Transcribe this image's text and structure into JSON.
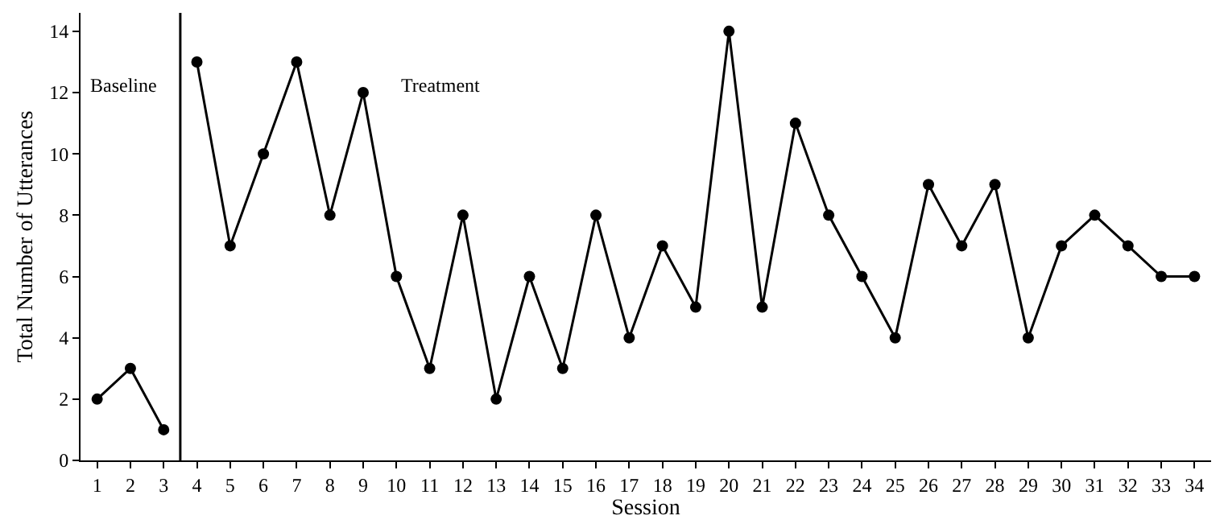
{
  "chart_data": {
    "type": "line",
    "xlabel": "Session",
    "ylabel": "Total Number of Utterances",
    "series": [
      {
        "color": "#000000",
        "x": [
          1,
          2,
          3
        ],
        "values": [
          2,
          3,
          1
        ]
      },
      {
        "color": "#000000",
        "x": [
          4,
          5,
          6,
          7,
          8,
          9,
          10,
          11,
          12,
          13,
          14,
          15,
          16,
          17,
          18,
          19,
          20,
          21,
          22,
          23,
          24,
          25,
          26,
          27,
          28,
          29,
          30,
          31,
          32,
          33,
          34
        ],
        "values": [
          13,
          7,
          10,
          13,
          8,
          12,
          6,
          3,
          8,
          2,
          6,
          3,
          8,
          4,
          7,
          5,
          14,
          5,
          11,
          8,
          6,
          4,
          9,
          7,
          9,
          4,
          7,
          8,
          7,
          6,
          6
        ]
      }
    ],
    "xlim": [
      0.5,
      34.5
    ],
    "xticks": [
      1,
      2,
      3,
      4,
      5,
      6,
      7,
      8,
      9,
      10,
      11,
      12,
      13,
      14,
      15,
      16,
      17,
      18,
      19,
      20,
      21,
      22,
      23,
      24,
      25,
      26,
      27,
      28,
      29,
      30,
      31,
      32,
      33,
      34
    ],
    "ylim": [
      0,
      14.6
    ],
    "yticks": [
      0,
      2,
      4,
      6,
      8,
      10,
      12,
      14
    ],
    "ref_lines": [
      {
        "axis": "x",
        "value": 3.5,
        "color": "#000000",
        "line_style": "solid"
      }
    ],
    "annotations": [
      "Baseline",
      "Treatment"
    ],
    "marker": "circle",
    "line_style": "solid"
  }
}
